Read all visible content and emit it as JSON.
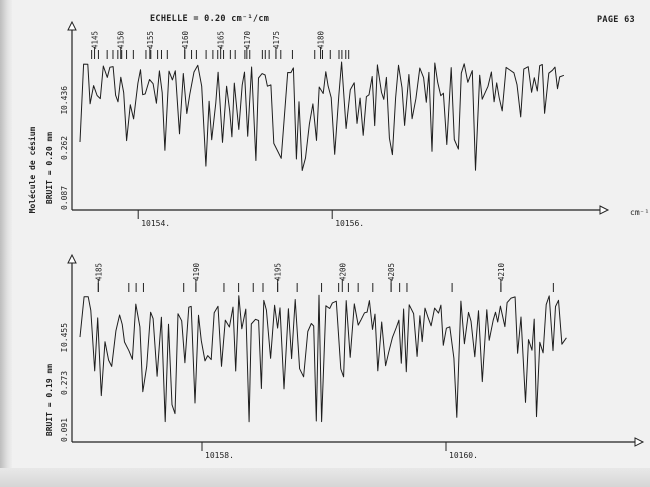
{
  "header": {
    "scale_label": "ECHELLE = 0.20 cm⁻¹/cm",
    "page_number": "PAGE 63"
  },
  "chart_data": [
    {
      "type": "line",
      "molecule_label": "Molécule de césium",
      "noise_label": "BRUIT = 0.20 mm",
      "mark_label": "I",
      "x_unit_label": "cm⁻¹",
      "x_range": [
        10153.4,
        10158.4
      ],
      "x_ticks": [
        {
          "value": 10154,
          "label": "10154."
        },
        {
          "value": 10156,
          "label": "10156."
        }
      ],
      "y_ticks": [
        {
          "value": 0.087,
          "label": "0.087"
        },
        {
          "value": 0.262,
          "label": "0.262"
        },
        {
          "value": 0.436,
          "label": "0.436"
        }
      ],
      "line_numbers": [
        {
          "n": "4145",
          "x": 10153.55
        },
        {
          "n": "4150",
          "x": 10153.82
        },
        {
          "n": "4155",
          "x": 10154.12
        },
        {
          "n": "4160",
          "x": 10154.48
        },
        {
          "n": "4165",
          "x": 10154.85
        },
        {
          "n": "4170",
          "x": 10155.12
        },
        {
          "n": "4175",
          "x": 10155.42
        },
        {
          "n": "4180",
          "x": 10155.88
        }
      ],
      "markers_x": [
        10153.52,
        10153.59,
        10153.68,
        10153.74,
        10153.79,
        10153.83,
        10153.88,
        10153.95,
        10154.08,
        10154.13,
        10154.2,
        10154.24,
        10154.3,
        10154.48,
        10154.55,
        10154.6,
        10154.7,
        10154.77,
        10154.82,
        10154.88,
        10154.95,
        10155.0,
        10155.1,
        10155.15,
        10155.28,
        10155.31,
        10155.35,
        10155.42,
        10155.47,
        10155.59,
        10155.82,
        10155.9,
        10155.98,
        10156.07,
        10156.1,
        10156.14,
        10156.17
      ]
    },
    {
      "type": "line",
      "noise_label": "BRUIT = 0.19 mm",
      "mark_label": "I",
      "x_unit_label": "cm⁻¹",
      "x_range": [
        10157.0,
        10161.0
      ],
      "x_ticks": [
        {
          "value": 10158,
          "label": "10158."
        },
        {
          "value": 10160,
          "label": "10160."
        }
      ],
      "y_ticks": [
        {
          "value": 0.091,
          "label": "0.091"
        },
        {
          "value": 0.273,
          "label": "0.273"
        },
        {
          "value": 0.455,
          "label": "0.455"
        }
      ],
      "line_numbers": [
        {
          "n": "4185",
          "x": 10157.15
        },
        {
          "n": "4190",
          "x": 10157.95
        },
        {
          "n": "4195",
          "x": 10158.62
        },
        {
          "n": "4200",
          "x": 10159.15
        },
        {
          "n": "4205",
          "x": 10159.55
        },
        {
          "n": "4210",
          "x": 10160.45
        }
      ],
      "markers_x": [
        10157.15,
        10157.4,
        10157.46,
        10157.52,
        10157.85,
        10157.95,
        10158.18,
        10158.3,
        10158.42,
        10158.5,
        10158.62,
        10158.78,
        10158.98,
        10159.12,
        10159.2,
        10159.28,
        10159.4,
        10159.55,
        10159.62,
        10159.68,
        10160.05,
        10160.45,
        10160.88
      ]
    }
  ]
}
